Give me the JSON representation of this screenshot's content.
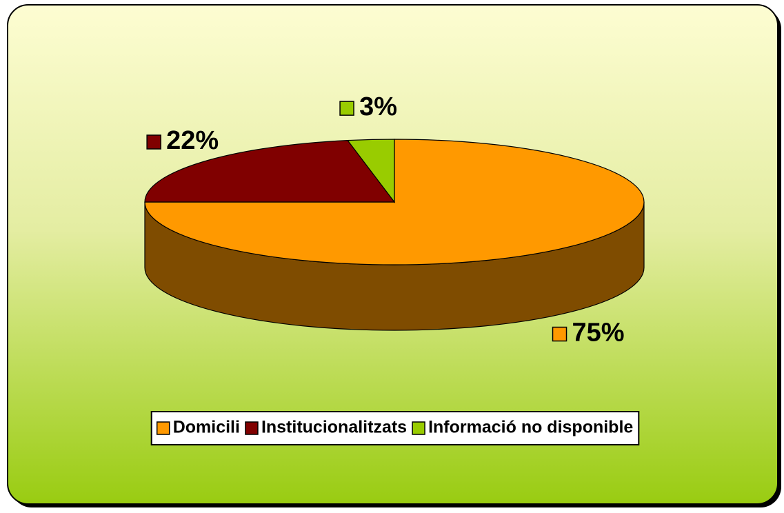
{
  "chart_data": {
    "type": "pie",
    "categories": [
      "Domicili",
      "Institucionalitzats",
      "Informació no disponible"
    ],
    "values": [
      75,
      22,
      3
    ],
    "value_labels": [
      "75%",
      "22%",
      "3%"
    ],
    "colors": [
      "#ff9900",
      "#800000",
      "#99cc00"
    ],
    "legend": "bottom"
  }
}
